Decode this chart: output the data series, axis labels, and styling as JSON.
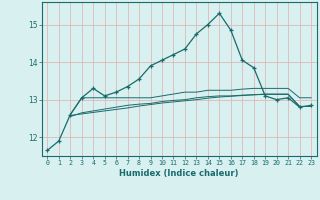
{
  "xlabel": "Humidex (Indice chaleur)",
  "x": [
    0,
    1,
    2,
    3,
    4,
    5,
    6,
    7,
    8,
    9,
    10,
    11,
    12,
    13,
    14,
    15,
    16,
    17,
    18,
    19,
    20,
    21,
    22,
    23
  ],
  "line1": [
    11.65,
    11.9,
    12.6,
    13.05,
    13.3,
    13.1,
    13.2,
    13.35,
    13.55,
    13.9,
    14.05,
    14.2,
    14.35,
    14.75,
    15.0,
    15.3,
    14.85,
    14.05,
    13.85,
    13.1,
    13.0,
    13.05,
    12.8,
    12.85
  ],
  "line2": [
    null,
    null,
    12.6,
    13.05,
    13.05,
    13.05,
    13.05,
    13.05,
    13.05,
    13.05,
    13.1,
    13.15,
    13.2,
    13.2,
    13.25,
    13.25,
    13.25,
    13.28,
    13.3,
    13.3,
    13.3,
    13.3,
    13.05,
    13.05
  ],
  "line3": [
    null,
    null,
    12.55,
    12.65,
    12.7,
    12.75,
    12.8,
    12.85,
    12.88,
    12.9,
    12.95,
    12.98,
    13.0,
    13.05,
    13.08,
    13.1,
    13.1,
    13.12,
    13.13,
    13.15,
    13.15,
    13.15,
    12.82,
    12.82
  ],
  "line4": [
    null,
    null,
    12.58,
    12.62,
    12.66,
    12.7,
    12.74,
    12.78,
    12.83,
    12.87,
    12.91,
    12.94,
    12.97,
    13.0,
    13.04,
    13.07,
    13.09,
    13.11,
    13.13,
    13.14,
    13.14,
    13.14,
    12.82,
    12.82
  ],
  "line_color": "#1a6b6b",
  "bg_color": "#d8f0f0",
  "grid_color": "#ddb8b8",
  "ylim": [
    11.5,
    15.6
  ],
  "xlim": [
    -0.5,
    23.5
  ],
  "yticks": [
    12,
    13,
    14,
    15
  ],
  "xticks": [
    0,
    1,
    2,
    3,
    4,
    5,
    6,
    7,
    8,
    9,
    10,
    11,
    12,
    13,
    14,
    15,
    16,
    17,
    18,
    19,
    20,
    21,
    22,
    23
  ]
}
